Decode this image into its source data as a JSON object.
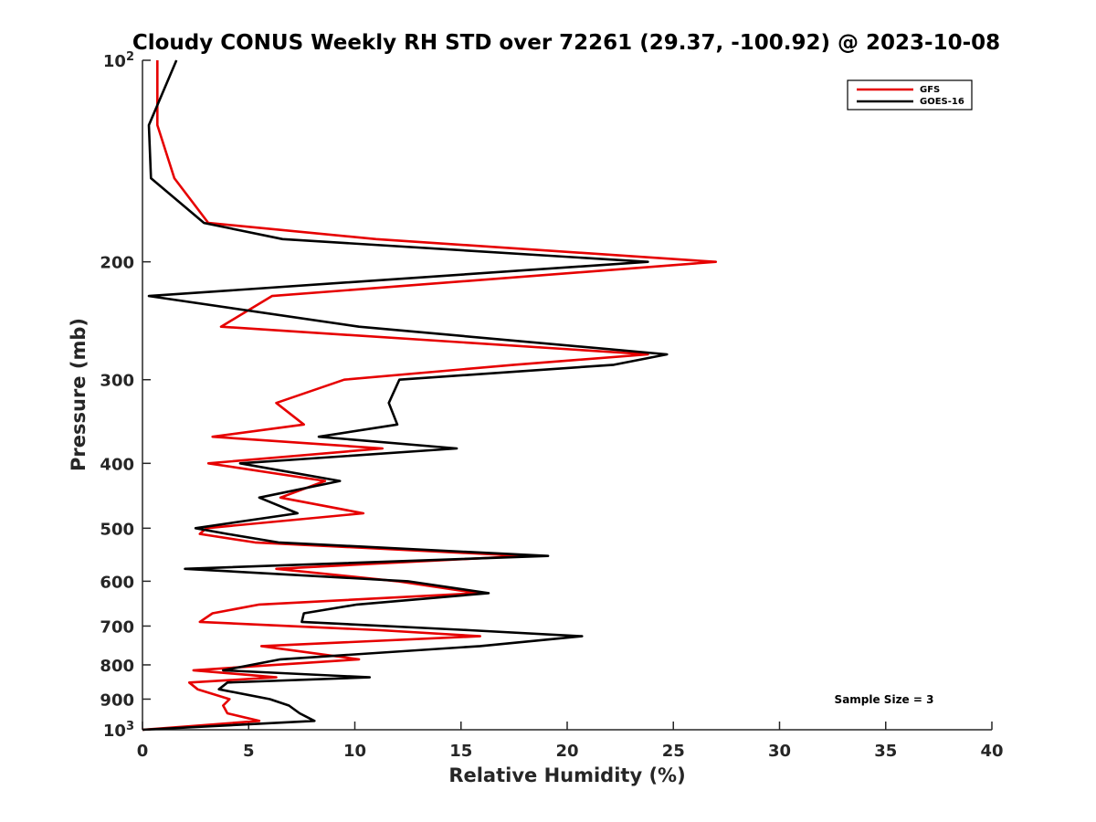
{
  "chart_data": {
    "type": "line",
    "title": "Cloudy CONUS Weekly RH STD over 72261 (29.37, -100.92) @ 2023-10-08",
    "xlabel": "Relative Humidity (%)",
    "ylabel": "Pressure (mb)",
    "xlim": [
      0,
      40
    ],
    "ylim": [
      100,
      1000
    ],
    "y_scale": "log",
    "y_reversed": true,
    "grid": false,
    "legend_position": "top-right",
    "x_ticks": [
      0,
      5,
      10,
      15,
      20,
      25,
      30,
      35,
      40
    ],
    "y_ticks": [
      {
        "value": 100,
        "base": "10",
        "exp": "2"
      },
      {
        "value": 200,
        "label": "200"
      },
      {
        "value": 300,
        "label": "300"
      },
      {
        "value": 400,
        "label": "400"
      },
      {
        "value": 500,
        "label": "500"
      },
      {
        "value": 600,
        "label": "600"
      },
      {
        "value": 700,
        "label": "700"
      },
      {
        "value": 800,
        "label": "800"
      },
      {
        "value": 900,
        "label": "900"
      },
      {
        "value": 1000,
        "base": "10",
        "exp": "3"
      }
    ],
    "series": [
      {
        "name": "GFS",
        "color": "#e60000",
        "points": [
          [
            0.7,
            100
          ],
          [
            0.7,
            125
          ],
          [
            1.5,
            150
          ],
          [
            3.1,
            175
          ],
          [
            11.0,
            185
          ],
          [
            27.0,
            200
          ],
          [
            6.1,
            225
          ],
          [
            3.7,
            250
          ],
          [
            23.8,
            275
          ],
          [
            17.5,
            285
          ],
          [
            9.5,
            300
          ],
          [
            6.3,
            325
          ],
          [
            7.6,
            350
          ],
          [
            3.3,
            365
          ],
          [
            11.3,
            380
          ],
          [
            3.1,
            400
          ],
          [
            8.6,
            425
          ],
          [
            6.5,
            450
          ],
          [
            10.4,
            475
          ],
          [
            3.0,
            500
          ],
          [
            2.7,
            510
          ],
          [
            5.3,
            525
          ],
          [
            18.0,
            550
          ],
          [
            6.3,
            575
          ],
          [
            12.0,
            600
          ],
          [
            15.8,
            625
          ],
          [
            5.5,
            650
          ],
          [
            3.3,
            670
          ],
          [
            2.7,
            690
          ],
          [
            11.2,
            710
          ],
          [
            15.9,
            725
          ],
          [
            5.6,
            750
          ],
          [
            10.2,
            785
          ],
          [
            2.4,
            815
          ],
          [
            6.3,
            835
          ],
          [
            2.2,
            850
          ],
          [
            2.6,
            870
          ],
          [
            4.1,
            900
          ],
          [
            3.8,
            920
          ],
          [
            4.0,
            945
          ],
          [
            5.5,
            970
          ],
          [
            0.0,
            1000
          ]
        ]
      },
      {
        "name": "GOES-16",
        "color": "#000000",
        "points": [
          [
            1.6,
            100
          ],
          [
            0.3,
            125
          ],
          [
            0.4,
            150
          ],
          [
            2.9,
            175
          ],
          [
            6.6,
            185
          ],
          [
            23.8,
            200
          ],
          [
            0.3,
            225
          ],
          [
            10.2,
            250
          ],
          [
            24.7,
            275
          ],
          [
            22.2,
            285
          ],
          [
            12.1,
            300
          ],
          [
            11.6,
            325
          ],
          [
            12.0,
            350
          ],
          [
            8.3,
            365
          ],
          [
            14.8,
            380
          ],
          [
            4.6,
            400
          ],
          [
            9.3,
            425
          ],
          [
            5.5,
            450
          ],
          [
            7.3,
            475
          ],
          [
            2.5,
            500
          ],
          [
            4.0,
            510
          ],
          [
            6.4,
            525
          ],
          [
            19.1,
            550
          ],
          [
            2.0,
            575
          ],
          [
            12.5,
            600
          ],
          [
            16.3,
            625
          ],
          [
            10.1,
            650
          ],
          [
            7.6,
            670
          ],
          [
            7.5,
            690
          ],
          [
            15.4,
            710
          ],
          [
            20.7,
            725
          ],
          [
            15.9,
            750
          ],
          [
            6.5,
            785
          ],
          [
            3.8,
            815
          ],
          [
            10.7,
            835
          ],
          [
            4.0,
            850
          ],
          [
            3.6,
            870
          ],
          [
            6.0,
            900
          ],
          [
            6.9,
            920
          ],
          [
            7.4,
            945
          ],
          [
            8.1,
            970
          ],
          [
            0.0,
            1000
          ]
        ]
      }
    ],
    "annotation": "Sample Size = 3"
  }
}
